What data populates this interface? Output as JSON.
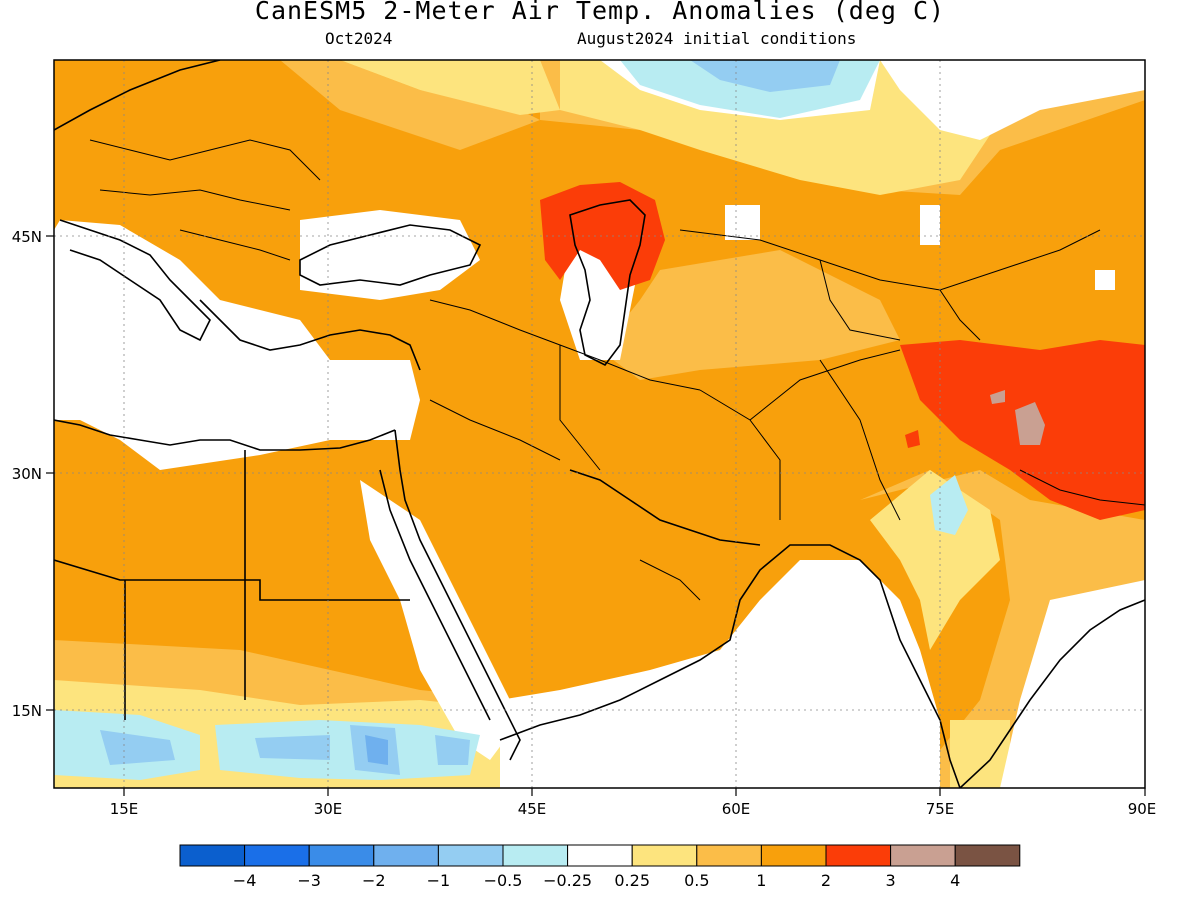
{
  "header": {
    "title": "CanESM5 2-Meter Air Temp. Anomalies (deg C)",
    "valid_month": "Oct2024",
    "init_conditions": "August2024 initial conditions"
  },
  "map": {
    "region": "Middle East / South Asia",
    "lon_range": [
      9,
      90
    ],
    "lat_range": [
      10,
      56
    ],
    "lon_ticks": [
      "15E",
      "30E",
      "45E",
      "60E",
      "75E",
      "90E"
    ],
    "lat_ticks": [
      "15N",
      "30N",
      "45N"
    ],
    "gridlines": true
  },
  "colorbar": {
    "labels": [
      "−4",
      "−3",
      "−2",
      "−1",
      "−0.5",
      "−0.25",
      "0.25",
      "0.5",
      "1",
      "2",
      "3",
      "4"
    ],
    "colors": [
      "#0b5fce",
      "#1a6fe8",
      "#3a8ce8",
      "#6fb0ee",
      "#94cdf2",
      "#b8ecf2",
      "#ffffff",
      "#fde47e",
      "#fbbd48",
      "#f8a00c",
      "#fb3d08",
      "#c9a092",
      "#7a5343"
    ]
  }
}
